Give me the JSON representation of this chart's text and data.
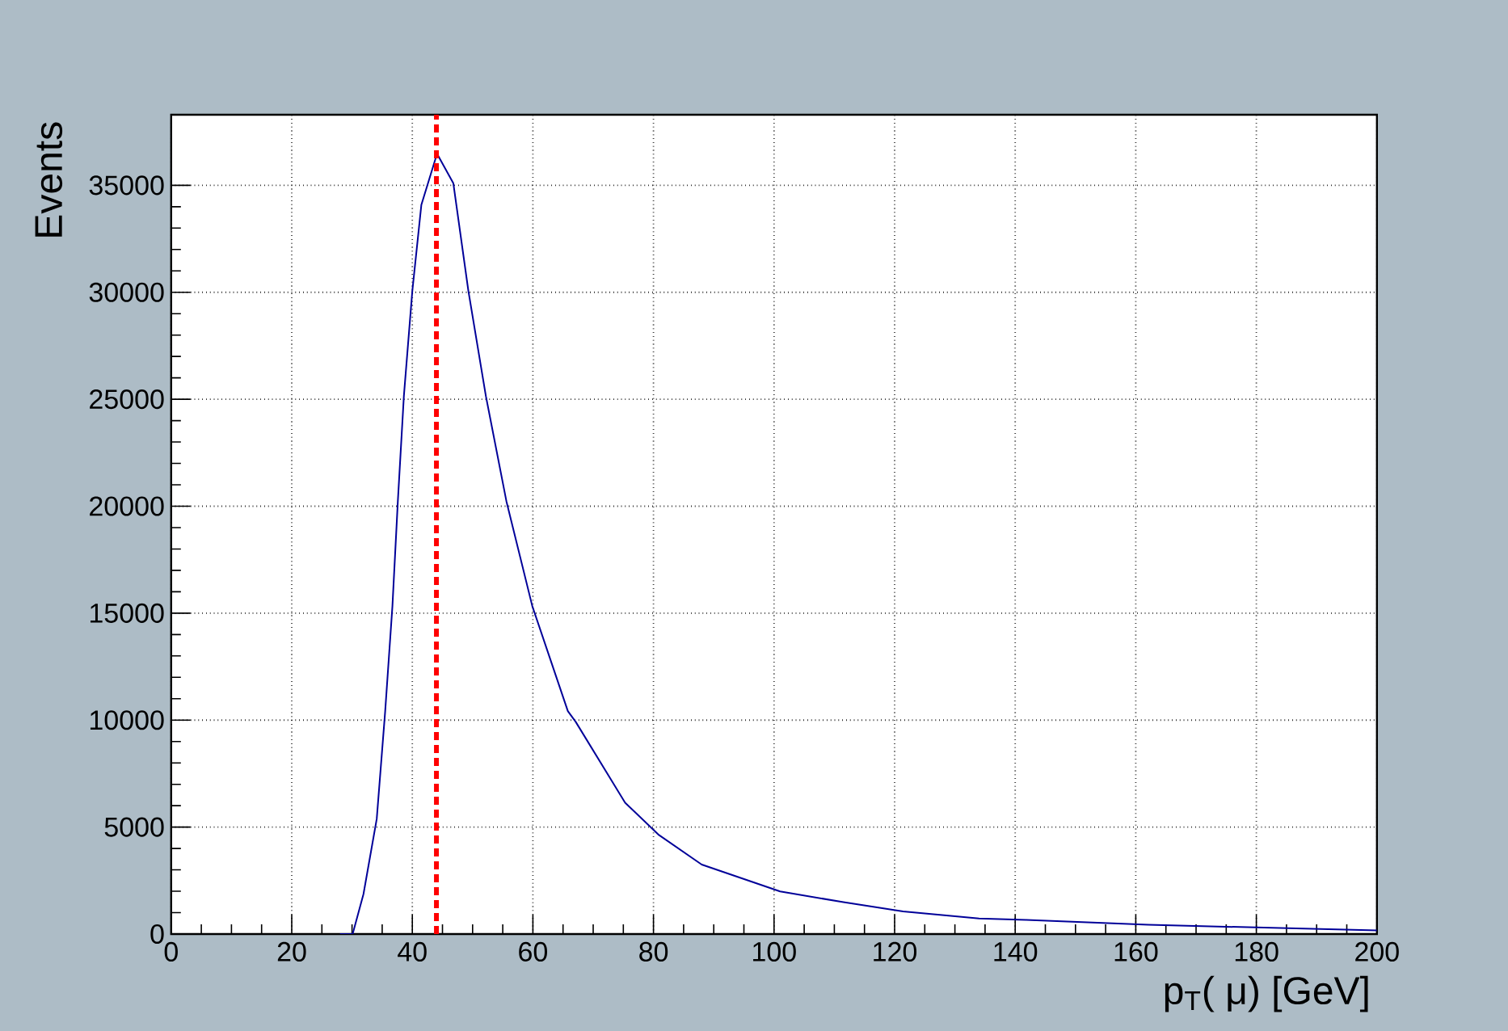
{
  "chart_data": {
    "type": "line",
    "xlabel": "p$_{T}$( μ) [GeV]",
    "ylabel": "Events",
    "x": [
      28,
      30.1,
      31.9,
      34.1,
      35.5,
      36.7,
      37.6,
      38.6,
      40,
      41.5,
      44.1,
      46.8,
      49.3,
      52.2,
      55.6,
      59.9,
      65.8,
      67.1,
      75.3,
      80.9,
      88,
      101,
      111.5,
      121.4,
      134,
      141.8,
      162.1,
      200
    ],
    "series": [
      {
        "color": "#000099",
        "values": [
          0,
          0,
          1870,
          5385,
          10420,
          15330,
          20240,
          25150,
          30060,
          34090,
          36480,
          35100,
          30060,
          25150,
          20240,
          15330,
          10420,
          9920,
          6140,
          4630,
          3250,
          1990,
          1490,
          1060,
          730,
          660,
          430,
          170
        ]
      }
    ],
    "xlim": [
      0,
      200
    ],
    "ylim": [
      0,
      38300
    ],
    "xticks": [
      0,
      20,
      40,
      60,
      80,
      100,
      120,
      140,
      160,
      180,
      200
    ],
    "yticks": [
      0,
      5000,
      10000,
      15000,
      20000,
      25000,
      30000,
      35000
    ],
    "grid": true,
    "marker": "none",
    "line_style": "solid",
    "ref_lines": [
      {
        "axis": "x",
        "value": 44,
        "color": "#ff0000",
        "line_style": "dashed"
      }
    ]
  }
}
